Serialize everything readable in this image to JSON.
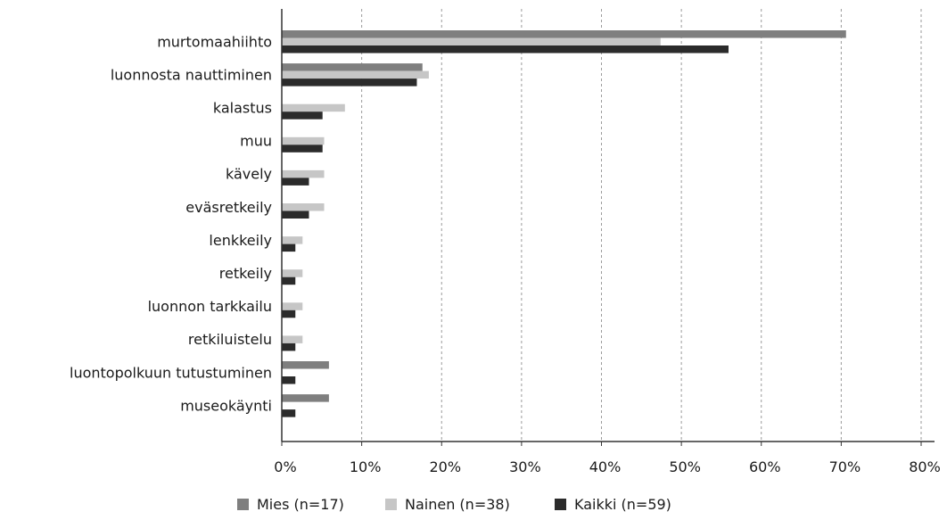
{
  "chart_data": {
    "type": "bar",
    "orientation": "horizontal",
    "title": "",
    "xlabel": "",
    "ylabel": "",
    "xlim": [
      0,
      80
    ],
    "x_ticks": [
      "0%",
      "10%",
      "20%",
      "30%",
      "40%",
      "50%",
      "60%",
      "70%",
      "80%"
    ],
    "grid": "vertical dashed",
    "legend_position": "bottom",
    "categories": [
      "murtomaahiihto",
      "luonnosta nauttiminen",
      "kalastus",
      "muu",
      "kävely",
      "eväsretkeily",
      "lenkkeily",
      "retkeily",
      "luonnon tarkkailu",
      "retkiluistelu",
      "luontopolkuun tutustuminen",
      "museokäynti"
    ],
    "series": [
      {
        "name": "Mies (n=17)",
        "color": "#7f7f7f",
        "values": [
          70.6,
          17.6,
          0,
          0,
          0,
          0,
          0,
          0,
          0,
          0,
          5.9,
          5.9
        ]
      },
      {
        "name": "Nainen (n=38)",
        "color": "#c6c6c6",
        "values": [
          47.4,
          18.4,
          7.9,
          5.3,
          5.3,
          5.3,
          2.6,
          2.6,
          2.6,
          2.6,
          0,
          0
        ]
      },
      {
        "name": "Kaikki (n=59)",
        "color": "#2b2b2b",
        "values": [
          55.9,
          16.9,
          5.1,
          5.1,
          3.4,
          3.4,
          1.7,
          1.7,
          1.7,
          1.7,
          1.7,
          1.7
        ]
      }
    ]
  }
}
